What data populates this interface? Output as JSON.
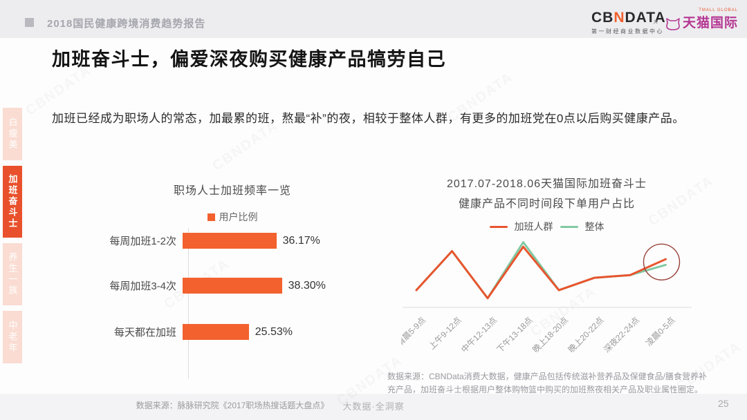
{
  "page": {
    "header": {
      "report_title": "2018国民健康跨境消费趋势报告"
    },
    "logos": {
      "cbndata_prefix": "CB",
      "cbndata_n": "N",
      "cbndata_suffix": "DATA",
      "cbndata_subtitle": "第一财经商业数据中心",
      "separator": "×",
      "tmall_small": "TMALL GLOBAL",
      "tmall_name": "天猫国际"
    },
    "title": "加班奋斗士，偏爱深夜购买健康产品犒劳自己",
    "intro": "加班已经成为职场人的常态，加最累的班，熬最“补”的夜，相较于整体人群，有更多的加班党在0点以后购买健康产品。",
    "sidebar": {
      "items": [
        {
          "label": "白瘦美",
          "active": false
        },
        {
          "label": "加班奋斗士",
          "active": true
        },
        {
          "label": "养生一族",
          "active": false
        },
        {
          "label": "中老年",
          "active": false
        }
      ]
    },
    "footer": {
      "slogan": "大数据·全洞察",
      "page_number": "25"
    },
    "watermark": "CBNDATA"
  },
  "colors": {
    "accent_orange": "#f2612e",
    "tab_active": "#e8512b",
    "tab_inactive": "#fadcd2",
    "line_orange": "#e8552e",
    "line_green": "#82c9a3",
    "circle_annotation": "#9a423c",
    "tmall_magenta": "#b53793",
    "header_gray": "#a6a6ae"
  },
  "chart_data": [
    {
      "type": "bar",
      "orientation": "horizontal",
      "title": "职场人士加班频率一览",
      "legend": [
        "用户比例"
      ],
      "categories": [
        "每周加班1-2次",
        "每周加班3-4次",
        "每天都在加班"
      ],
      "values": [
        36.17,
        38.3,
        25.53
      ],
      "value_labels": [
        "36.17%",
        "38.30%",
        "25.53%"
      ],
      "xlim": [
        0,
        40
      ],
      "grid": false,
      "source": "数据来源：脉脉研究院《2017职场热搜话题大盘点》"
    },
    {
      "type": "line",
      "title_line1": "2017.07-2018.06天猫国际加班奋斗士",
      "title_line2": "健康产品不同时间段下单用户占比",
      "categories": [
        "清晨5-9点",
        "上午9-12点",
        "中午12-13点",
        "下午13-18点",
        "晚上18-20点",
        "晚上20-22点",
        "深夜22-24点",
        "凌晨0-5点"
      ],
      "series": [
        {
          "name": "加班人群",
          "color": "#e8552e",
          "values": [
            6.4,
            20.9,
            3.4,
            22.5,
            6.4,
            11.0,
            12.0,
            17.9
          ]
        },
        {
          "name": "整体",
          "color": "#82c9a3",
          "values": [
            6.4,
            20.9,
            3.4,
            24.2,
            6.4,
            11.0,
            12.0,
            15.8
          ]
        }
      ],
      "ylim": [
        0,
        26
      ],
      "y_axis_labels_visible": false,
      "legend_position": "top",
      "annotation": {
        "type": "circle-highlight",
        "category_index": 7,
        "color": "#9a423c"
      },
      "source": "数据来源：CBNData消费大数据，健康产品包括传统滋补营养品及保健食品/膳食营养补充产品，加班奋斗士根据用户整体购物篮中购买的加班熬夜相关产品及职业属性圈定。"
    }
  ]
}
